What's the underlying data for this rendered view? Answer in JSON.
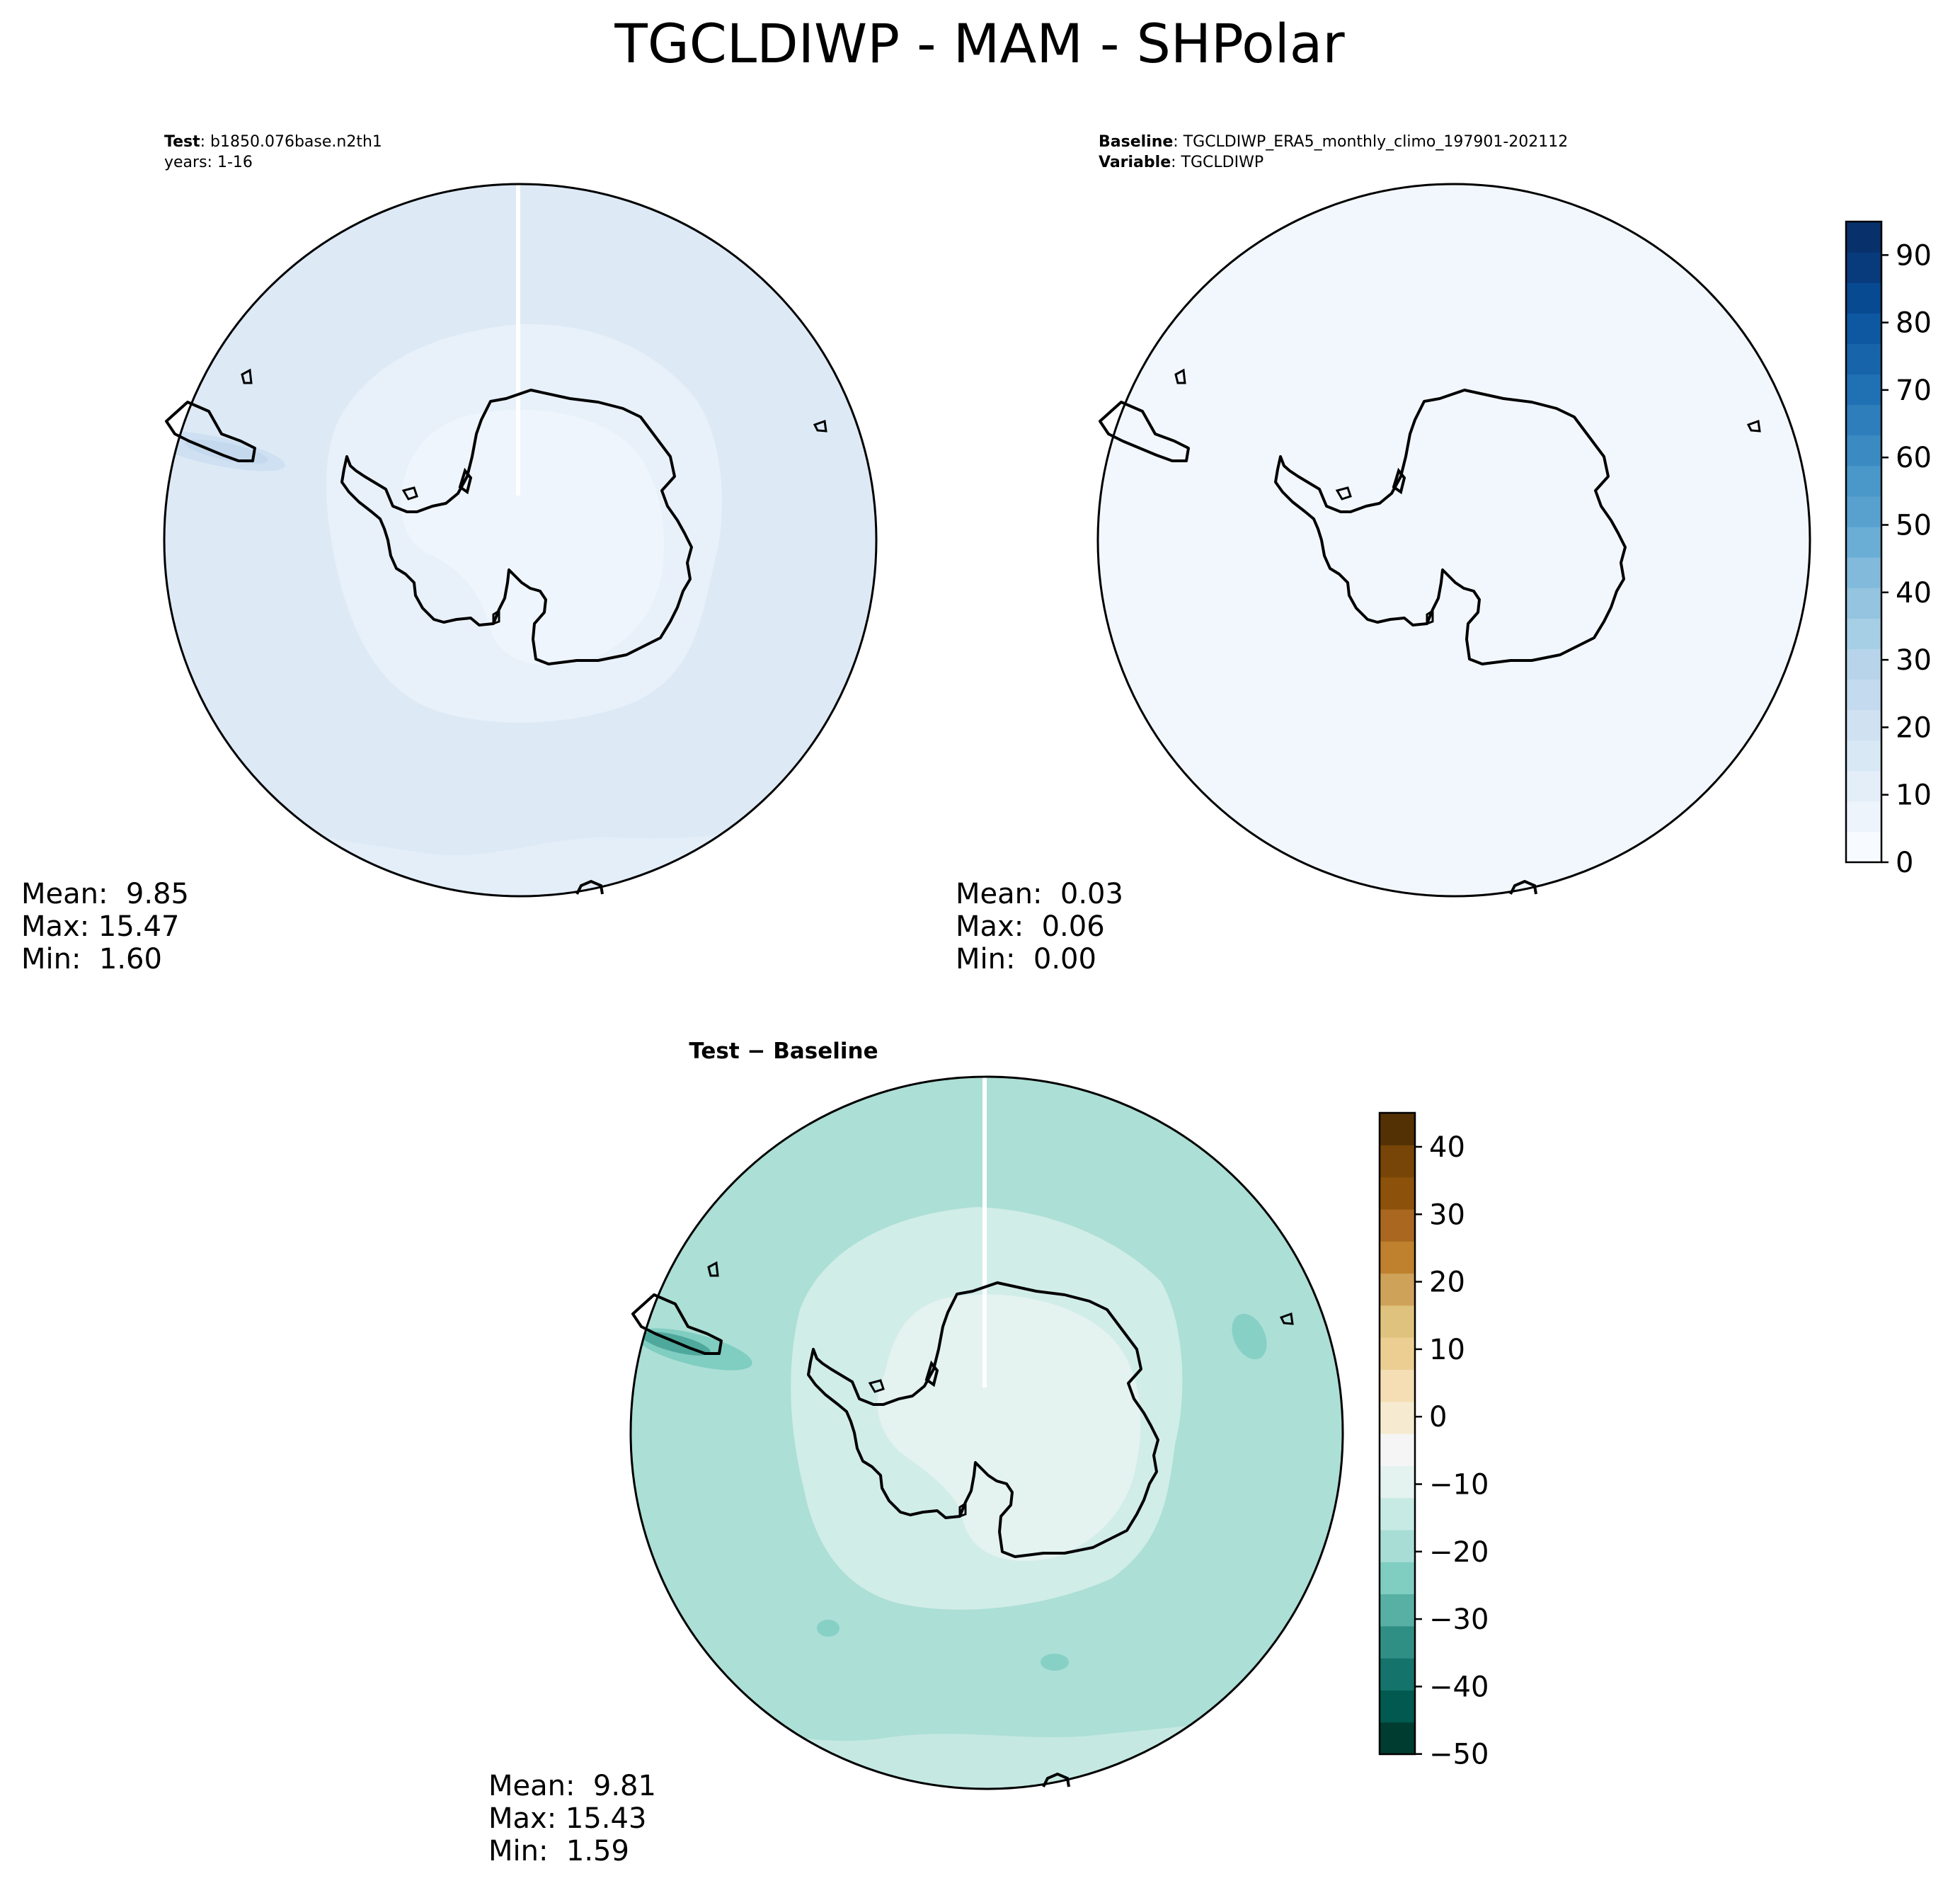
{
  "figure": {
    "title": "TGCLDIWP - MAM - SHPolar"
  },
  "panels": {
    "test": {
      "label_key": "Test",
      "label_value": ": b1850.076base.n2th1",
      "line2": "years: 1-16",
      "stats": {
        "mean": "Mean:  9.85",
        "max": "Max: 15.47",
        "min": "Min:  1.60"
      }
    },
    "baseline": {
      "label_key": "Baseline",
      "label_value": ": TGCLDIWP_ERA5_monthly_climo_197901-202112",
      "label2_key": "Variable",
      "label2_value": ": TGCLDIWP",
      "stats": {
        "mean": "Mean:  0.03",
        "max": "Max:  0.06",
        "min": "Min:  0.00"
      }
    },
    "diff": {
      "title": "Test − Baseline",
      "stats": {
        "mean": "Mean:  9.81",
        "max": "Max: 15.43",
        "min": "Min:  1.59"
      }
    }
  },
  "colorbars": {
    "blues": {
      "ticks": [
        "0",
        "10",
        "20",
        "30",
        "40",
        "50",
        "60",
        "70",
        "80",
        "90"
      ],
      "colors": [
        "#f7fbff",
        "#edf4fc",
        "#e3eef9",
        "#d9e8f5",
        "#d0e1f2",
        "#c4daee",
        "#b7d4ea",
        "#a6cee4",
        "#94c4df",
        "#82badb",
        "#6aaed6",
        "#58a1cf",
        "#4a98c9",
        "#3b8bc2",
        "#2e7ebc",
        "#2070b4",
        "#1764ab",
        "#0e58a2",
        "#084a91",
        "#083b7c",
        "#08306b"
      ]
    },
    "brbg": {
      "ticks": [
        "40",
        "30",
        "20",
        "10",
        "0",
        "−10",
        "−20",
        "−30",
        "−40",
        "−50"
      ],
      "colors": [
        "#003c30",
        "#01594f",
        "#14736a",
        "#2f8f85",
        "#58b0a5",
        "#80cdc1",
        "#a7ddd5",
        "#c7eae5",
        "#e4f2f0",
        "#f5f5f5",
        "#f6ebd0",
        "#f5deb3",
        "#ecce93",
        "#dfc27d",
        "#cfa25a",
        "#bf812d",
        "#a9671f",
        "#8c510a",
        "#774508",
        "#543005"
      ]
    }
  },
  "chart_data": [
    {
      "type": "heatmap",
      "title": "Test: b1850.076base.n2th1 years: 1-16",
      "projection": "South polar stereographic",
      "colormap": "Blues",
      "color_range": [
        0,
        95
      ],
      "colorbar_ticks": [
        0,
        10,
        20,
        30,
        40,
        50,
        60,
        70,
        80,
        90
      ],
      "stats": {
        "mean": 9.85,
        "max": 15.47,
        "min": 1.6
      }
    },
    {
      "type": "heatmap",
      "title": "Baseline: TGCLDIWP_ERA5_monthly_climo_197901-202112 Variable: TGCLDIWP",
      "projection": "South polar stereographic",
      "colormap": "Blues",
      "color_range": [
        0,
        95
      ],
      "colorbar_ticks": [
        0,
        10,
        20,
        30,
        40,
        50,
        60,
        70,
        80,
        90
      ],
      "stats": {
        "mean": 0.03,
        "max": 0.06,
        "min": 0.0
      }
    },
    {
      "type": "heatmap",
      "title": "Test − Baseline",
      "projection": "South polar stereographic",
      "colormap": "BrBG",
      "color_range": [
        -50,
        45
      ],
      "colorbar_ticks": [
        -50,
        -40,
        -30,
        -20,
        -10,
        0,
        10,
        20,
        30,
        40
      ],
      "stats": {
        "mean": 9.81,
        "max": 15.43,
        "min": 1.59
      }
    }
  ]
}
